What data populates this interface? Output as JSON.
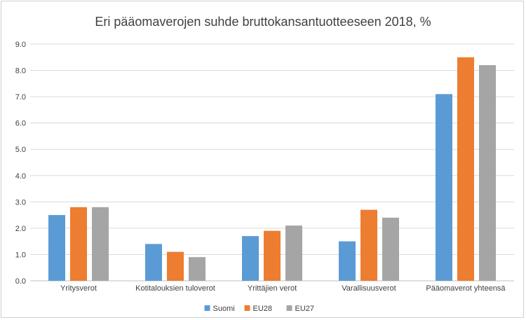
{
  "chart_data": {
    "type": "bar",
    "title": "Eri pääomaverojen suhde bruttokansantuotteeseen 2018, %",
    "categories": [
      "Yritysverot",
      "Kotitalouksien tuloverot",
      "Yrittäjien verot",
      "Varallisuusverot",
      "Pääomaverot yhteensä"
    ],
    "series": [
      {
        "name": "Suomi",
        "color": "#5b9bd5",
        "values": [
          2.5,
          1.4,
          1.7,
          1.5,
          7.1
        ]
      },
      {
        "name": "EU28",
        "color": "#ed7d31",
        "values": [
          2.8,
          1.1,
          1.9,
          2.7,
          8.5
        ]
      },
      {
        "name": "EU27",
        "color": "#a5a5a5",
        "values": [
          2.8,
          0.9,
          2.1,
          2.4,
          8.2
        ]
      }
    ],
    "ylim": [
      0,
      9
    ],
    "yticks": [
      "0.0",
      "1.0",
      "2.0",
      "3.0",
      "4.0",
      "5.0",
      "6.0",
      "7.0",
      "8.0",
      "9.0"
    ],
    "grid": true,
    "legend": "bottom"
  }
}
